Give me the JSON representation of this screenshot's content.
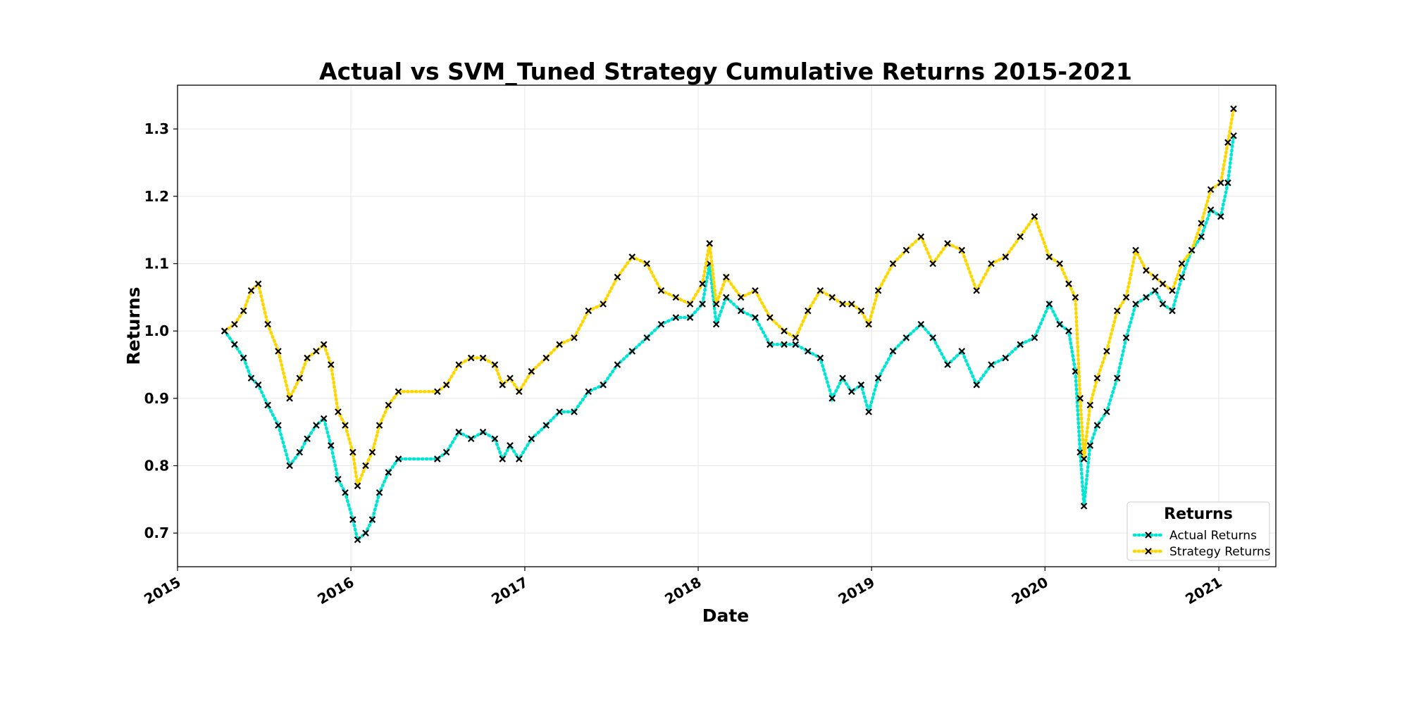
{
  "chart_data": {
    "type": "line",
    "title": "Actual vs SVM_Tuned Strategy Cumulative Returns 2015-2021",
    "xlabel": "Date",
    "ylabel": "Returns",
    "x_tick_labels": [
      "2015",
      "2016",
      "2017",
      "2018",
      "2019",
      "2020",
      "2021"
    ],
    "y_tick_labels": [
      "0.7",
      "0.8",
      "0.9",
      "1.0",
      "1.1",
      "1.2",
      "1.3"
    ],
    "xlim": [
      "2015-01-01",
      "2021-05-01"
    ],
    "ylim": [
      0.65,
      1.365
    ],
    "grid": true,
    "legend": {
      "title": "Returns",
      "position": "lower-right"
    },
    "marker": "x",
    "series": [
      {
        "name": "Actual Returns",
        "color": "#00e5d4",
        "line_style": "dotted",
        "x": [
          "2015-04-10",
          "2015-05-01",
          "2015-05-20",
          "2015-06-05",
          "2015-06-20",
          "2015-07-10",
          "2015-08-01",
          "2015-08-25",
          "2015-09-15",
          "2015-10-01",
          "2015-10-20",
          "2015-11-05",
          "2015-11-20",
          "2015-12-05",
          "2015-12-20",
          "2016-01-05",
          "2016-01-15",
          "2016-02-01",
          "2016-02-15",
          "2016-03-01",
          "2016-03-20",
          "2016-04-10",
          "2016-07-01",
          "2016-07-20",
          "2016-08-15",
          "2016-09-10",
          "2016-10-05",
          "2016-10-30",
          "2016-11-15",
          "2016-12-01",
          "2016-12-20",
          "2017-01-15",
          "2017-02-15",
          "2017-03-15",
          "2017-04-15",
          "2017-05-15",
          "2017-06-15",
          "2017-07-15",
          "2017-08-15",
          "2017-09-15",
          "2017-10-15",
          "2017-11-15",
          "2017-12-15",
          "2018-01-10",
          "2018-01-25",
          "2018-02-08",
          "2018-03-01",
          "2018-04-01",
          "2018-05-01",
          "2018-06-01",
          "2018-07-01",
          "2018-07-25",
          "2018-08-20",
          "2018-09-15",
          "2018-10-10",
          "2018-11-01",
          "2018-11-20",
          "2018-12-10",
          "2018-12-26",
          "2019-01-15",
          "2019-02-15",
          "2019-03-15",
          "2019-04-15",
          "2019-05-10",
          "2019-06-10",
          "2019-07-10",
          "2019-08-10",
          "2019-09-10",
          "2019-10-10",
          "2019-11-10",
          "2019-12-10",
          "2020-01-10",
          "2020-02-01",
          "2020-02-20",
          "2020-03-05",
          "2020-03-15",
          "2020-03-23",
          "2020-04-05",
          "2020-04-20",
          "2020-05-10",
          "2020-06-01",
          "2020-06-20",
          "2020-07-10",
          "2020-08-01",
          "2020-08-20",
          "2020-09-05",
          "2020-09-25",
          "2020-10-15",
          "2020-11-05",
          "2020-11-25",
          "2020-12-15",
          "2021-01-05",
          "2021-01-20",
          "2021-02-01"
        ],
        "y": [
          1.0,
          0.98,
          0.96,
          0.93,
          0.92,
          0.89,
          0.86,
          0.8,
          0.82,
          0.84,
          0.86,
          0.87,
          0.83,
          0.78,
          0.76,
          0.72,
          0.69,
          0.7,
          0.72,
          0.76,
          0.79,
          0.81,
          0.81,
          0.82,
          0.85,
          0.84,
          0.85,
          0.84,
          0.81,
          0.83,
          0.81,
          0.84,
          0.86,
          0.88,
          0.88,
          0.91,
          0.92,
          0.95,
          0.97,
          0.99,
          1.01,
          1.02,
          1.02,
          1.04,
          1.1,
          1.01,
          1.05,
          1.03,
          1.02,
          0.98,
          0.98,
          0.98,
          0.97,
          0.96,
          0.9,
          0.93,
          0.91,
          0.92,
          0.88,
          0.93,
          0.97,
          0.99,
          1.01,
          0.99,
          0.95,
          0.97,
          0.92,
          0.95,
          0.96,
          0.98,
          0.99,
          1.04,
          1.01,
          1.0,
          0.94,
          0.82,
          0.74,
          0.83,
          0.86,
          0.88,
          0.93,
          0.99,
          1.04,
          1.05,
          1.06,
          1.04,
          1.03,
          1.08,
          1.12,
          1.14,
          1.18,
          1.17,
          1.22,
          1.29
        ]
      },
      {
        "name": "Strategy Returns",
        "color": "#ffd700",
        "line_style": "dotted",
        "x": [
          "2015-04-10",
          "2015-05-01",
          "2015-05-20",
          "2015-06-05",
          "2015-06-20",
          "2015-07-10",
          "2015-08-01",
          "2015-08-25",
          "2015-09-15",
          "2015-10-01",
          "2015-10-20",
          "2015-11-05",
          "2015-11-20",
          "2015-12-05",
          "2015-12-20",
          "2016-01-05",
          "2016-01-15",
          "2016-02-01",
          "2016-02-15",
          "2016-03-01",
          "2016-03-20",
          "2016-04-10",
          "2016-07-01",
          "2016-07-20",
          "2016-08-15",
          "2016-09-10",
          "2016-10-05",
          "2016-10-30",
          "2016-11-15",
          "2016-12-01",
          "2016-12-20",
          "2017-01-15",
          "2017-02-15",
          "2017-03-15",
          "2017-04-15",
          "2017-05-15",
          "2017-06-15",
          "2017-07-15",
          "2017-08-15",
          "2017-09-15",
          "2017-10-15",
          "2017-11-15",
          "2017-12-15",
          "2018-01-10",
          "2018-01-25",
          "2018-02-08",
          "2018-03-01",
          "2018-04-01",
          "2018-05-01",
          "2018-06-01",
          "2018-07-01",
          "2018-07-25",
          "2018-08-20",
          "2018-09-15",
          "2018-10-10",
          "2018-11-01",
          "2018-11-20",
          "2018-12-10",
          "2018-12-26",
          "2019-01-15",
          "2019-02-15",
          "2019-03-15",
          "2019-04-15",
          "2019-05-10",
          "2019-06-10",
          "2019-07-10",
          "2019-08-10",
          "2019-09-10",
          "2019-10-10",
          "2019-11-10",
          "2019-12-10",
          "2020-01-10",
          "2020-02-01",
          "2020-02-20",
          "2020-03-05",
          "2020-03-15",
          "2020-03-23",
          "2020-04-05",
          "2020-04-20",
          "2020-05-10",
          "2020-06-01",
          "2020-06-20",
          "2020-07-10",
          "2020-08-01",
          "2020-08-20",
          "2020-09-05",
          "2020-09-25",
          "2020-10-15",
          "2020-11-05",
          "2020-11-25",
          "2020-12-15",
          "2021-01-05",
          "2021-01-20",
          "2021-02-01"
        ],
        "y": [
          1.0,
          1.01,
          1.03,
          1.06,
          1.07,
          1.01,
          0.97,
          0.9,
          0.93,
          0.96,
          0.97,
          0.98,
          0.95,
          0.88,
          0.86,
          0.82,
          0.77,
          0.8,
          0.82,
          0.86,
          0.89,
          0.91,
          0.91,
          0.92,
          0.95,
          0.96,
          0.96,
          0.95,
          0.92,
          0.93,
          0.91,
          0.94,
          0.96,
          0.98,
          0.99,
          1.03,
          1.04,
          1.08,
          1.11,
          1.1,
          1.06,
          1.05,
          1.04,
          1.07,
          1.13,
          1.04,
          1.08,
          1.05,
          1.06,
          1.02,
          1.0,
          0.99,
          1.03,
          1.06,
          1.05,
          1.04,
          1.04,
          1.03,
          1.01,
          1.06,
          1.1,
          1.12,
          1.14,
          1.1,
          1.13,
          1.12,
          1.06,
          1.1,
          1.11,
          1.14,
          1.17,
          1.11,
          1.1,
          1.07,
          1.05,
          0.9,
          0.81,
          0.89,
          0.93,
          0.97,
          1.03,
          1.05,
          1.12,
          1.09,
          1.08,
          1.07,
          1.06,
          1.1,
          1.12,
          1.16,
          1.21,
          1.22,
          1.28,
          1.33
        ]
      }
    ]
  }
}
